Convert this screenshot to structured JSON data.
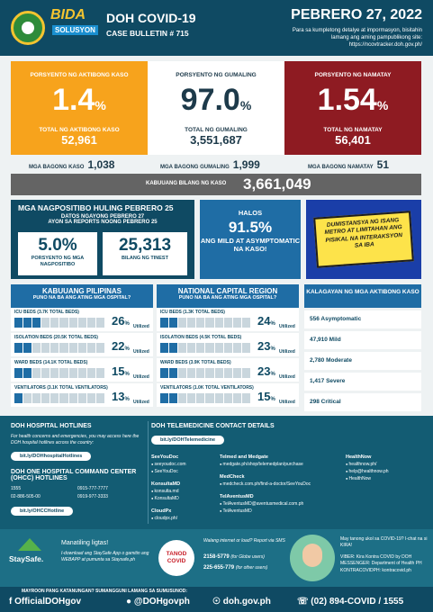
{
  "header": {
    "title": "DOH COVID-19",
    "bulletin": "CASE BULLETIN # 715",
    "date": "PEBRERO 27, 2022",
    "note": "Para sa kumpletong detalye at impormasyon, bisitahin lamang ang aming pampublikong site: https://ncovtracker.doh.gov.ph/",
    "logo_text_1": "BIDA",
    "logo_text_2": "SOLUSYON"
  },
  "top_stats": [
    {
      "label": "PORSYENTO NG AKTIBONG KASO",
      "percent": "1.4",
      "sub_label": "TOTAL NG AKTIBONG KASO",
      "total": "52,961"
    },
    {
      "label": "PORSYENTO NG GUMALING",
      "percent": "97.0",
      "sub_label": "TOTAL NG GUMALING",
      "total": "3,551,687"
    },
    {
      "label": "PORSYENTO NG NAMATAY",
      "percent": "1.54",
      "sub_label": "TOTAL NG NAMATAY",
      "total": "56,401"
    }
  ],
  "percent_sign": "%",
  "new_cases": {
    "label": "MGA BAGONG KASO",
    "value": "1,038"
  },
  "new_recoveries": {
    "label": "MGA BAGONG GUMALING",
    "value": "1,999"
  },
  "new_deaths": {
    "label": "MGA BAGONG NAMATAY",
    "value": "51"
  },
  "total_cases": {
    "label": "KABUUANG BILANG NG KASO",
    "value": "3,661,049"
  },
  "positivity": {
    "title": "MGA NAGPOSITIBO HULING PEBRERO 25",
    "sub1": "DATOS NGAYONG PEBRERO 27",
    "sub2": "AYON SA REPORTS NOONG PEBRERO 25",
    "rate_value": "5.0%",
    "rate_label": "PORSYENTO NG MGA NAGPOSITIBO",
    "tested_value": "25,313",
    "tested_label": "BILANG NG TINEST"
  },
  "mild": {
    "line1": "HALOS",
    "value": "91.5%",
    "line2": "ANG MILD AT ASYMPTOMATIC NA KASO!"
  },
  "comic": {
    "text": "DUMISTANSYA NG ISANG METRO AT LIMITAHAN ANG PISIKAL NA INTERAKSYON SA IBA"
  },
  "hospital_ph": {
    "title": "KABUUANG PILIPINAS",
    "subtitle": "PUNO NA BA ANG ATING MGA OSPITAL?",
    "rows": [
      {
        "label": "ICU BEDS (3.7K TOTAL BEDS)",
        "pct": "26",
        "fill": 0.26
      },
      {
        "label": "ISOLATION BEDS (20.5K TOTAL BEDS)",
        "pct": "22",
        "fill": 0.22
      },
      {
        "label": "WARD BEDS (14.1K TOTAL BEDS)",
        "pct": "15",
        "fill": 0.15
      },
      {
        "label": "VENTILATORS (3.1K TOTAL VENTILATORS)",
        "pct": "13",
        "fill": 0.13
      }
    ]
  },
  "hospital_ncr": {
    "title": "NATIONAL CAPITAL REGION",
    "subtitle": "PUNO NA BA ANG ATING MGA OSPITAL?",
    "rows": [
      {
        "label": "ICU BEDS (1.3K TOTAL BEDS)",
        "pct": "24",
        "fill": 0.24
      },
      {
        "label": "ISOLATION BEDS (4.5K TOTAL BEDS)",
        "pct": "23",
        "fill": 0.23
      },
      {
        "label": "WARD BEDS (3.9K TOTAL BEDS)",
        "pct": "23",
        "fill": 0.23
      },
      {
        "label": "VENTILATORS (1.0K TOTAL VENTILATORS)",
        "pct": "15",
        "fill": 0.15
      }
    ]
  },
  "utilized_label": "Utilized",
  "active_status": {
    "title": "KALAGAYAN NG MGA AKTIBONG KASO",
    "rows": [
      "556 Asymptomatic",
      "47,910 Mild",
      "2,780 Moderate",
      "1,417 Severe",
      "298 Critical"
    ]
  },
  "hotlines": {
    "title": "DOH HOSPITAL HOTLINES",
    "note": "For health concerns and emergencies, you may access here the DOH hospital hotlines across the country:",
    "link1": "bit.ly/DOHhospitalHotlines",
    "ohcc_title": "DOH ONE HOSPITAL COMMAND CENTER (OHCC) HOTLINES",
    "numbers": [
      "1555",
      "0915-777-7777",
      "02-886-505-00",
      "0919-977-3333"
    ],
    "link2": "bit.ly/OHCCHotline"
  },
  "telemed": {
    "title": "DOH TELEMEDICINE CONTACT DETAILS",
    "link": "bit.ly/DOHTelemedicine",
    "col1": [
      {
        "name": "SeeYouDoc",
        "lines": [
          "seeyoudoc.com",
          "SeeYouDoc"
        ]
      },
      {
        "name": "KonsultaMD",
        "lines": [
          "konsulta.md",
          "KonsultaMD"
        ]
      },
      {
        "name": "CloudPx",
        "lines": [
          "cloudpx.ph/"
        ]
      }
    ],
    "col2": [
      {
        "name": "Telmed and Medgate",
        "lines": [
          "medgate.ph/shop/telemedplan/purchase"
        ]
      },
      {
        "name": "MedCheck",
        "lines": [
          "medcheck.com.ph/find-a-doctor/SeeYouDoc"
        ]
      },
      {
        "name": "TelAventusMD",
        "lines": [
          "TelAventusMD@aventusmedical.com.ph",
          "TelAventusMD"
        ]
      }
    ],
    "col3": [
      {
        "name": "HealthNow",
        "lines": [
          "healthnow.ph/",
          "help@healthnow.ph",
          "HealthNow"
        ]
      }
    ]
  },
  "staysafe": {
    "logo": "StaySafe.",
    "title": "Manatiling ligtas!",
    "text": "I-download ang StaySafe App o gamitin ang WEBAPP at pumunta sa Staysafe.ph"
  },
  "tanod": {
    "logo": "TANOD COVID",
    "note": "Walang internet or load? Report via SMS",
    "num1": "2158-5779",
    "num1_note": "(for Globe users)",
    "num2": "225-655-779",
    "num2_note": "(for other users)"
  },
  "kira": {
    "intro": "May tanong ukol sa COVID-19? I-chat na si KIRA!",
    "lines": [
      "VIBER: Kira Kontra COVID by DOH",
      "MESSENGER: Department of Health PH",
      "KONTRACOVIDPH: kontracovid.ph"
    ]
  },
  "footer": {
    "caption": "MAYROON PANG KATANUNGAN? SUMANGGUNI LAMANG SA SUMUSUNOD:",
    "facebook": "OfficialDOHgov",
    "twitter": "@DOHgovph",
    "website": "doh.gov.ph",
    "phone": "(02) 894-COVID / 1555"
  }
}
